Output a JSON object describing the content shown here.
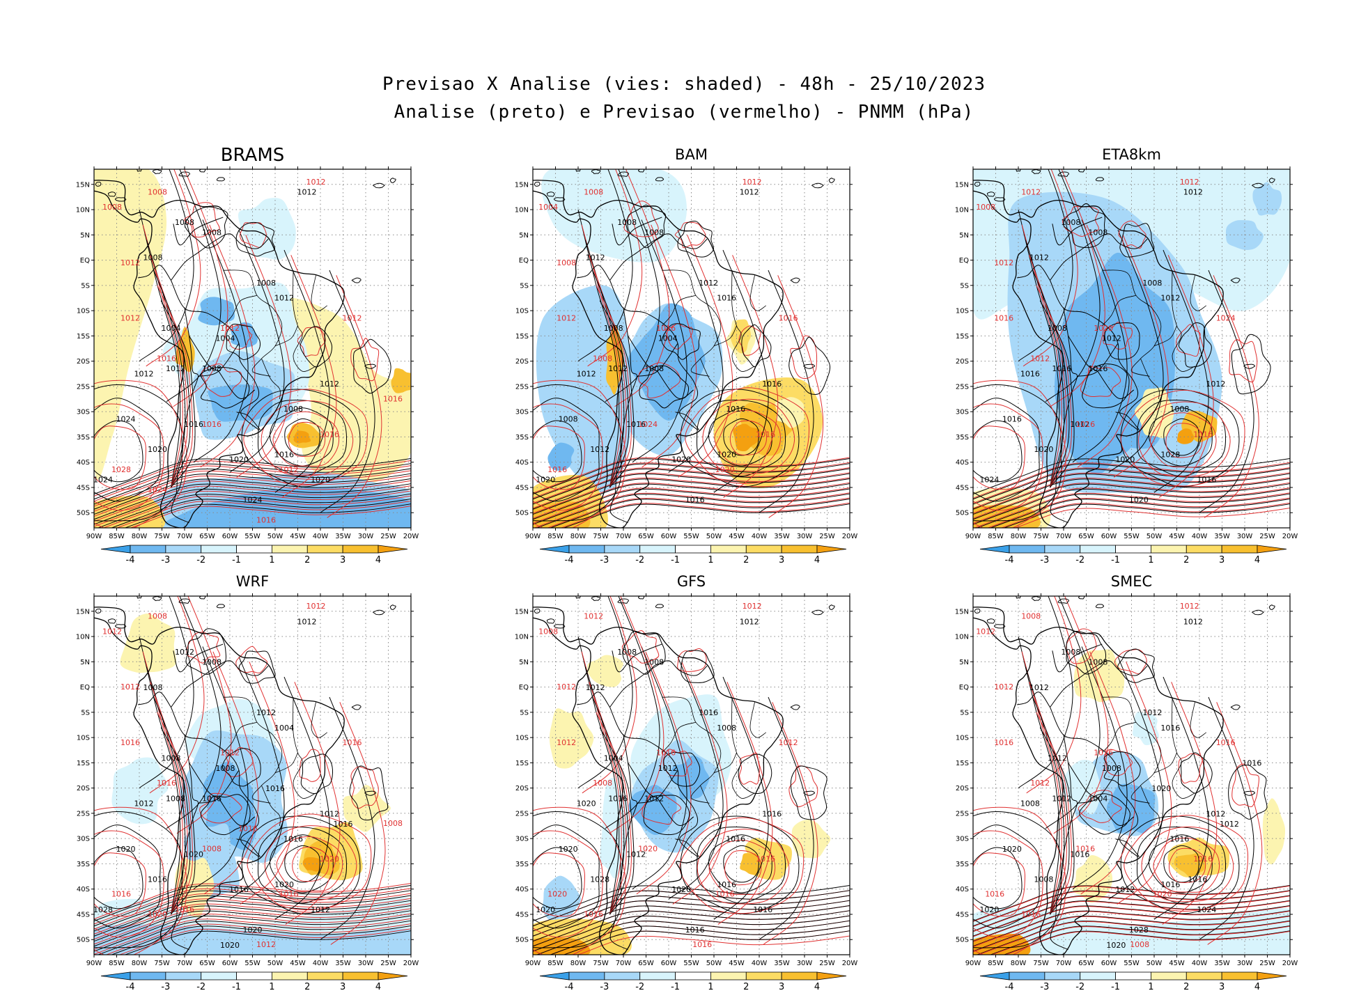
{
  "figure": {
    "title_line1": "Previsao X Analise (vies: shaded) - 48h - 25/10/2023",
    "title_line2": "Analise (preto) e Previsao (vermelho) - PNMM (hPa)"
  },
  "colors": {
    "analysis_contour": "#000000",
    "forecast_contour": "#e03030",
    "grid": "#8a8a8a",
    "coast": "#000000",
    "bias_scale": [
      "#3aa0e8",
      "#6fb8f0",
      "#a8d8f8",
      "#d8f4fc",
      "#ffffff",
      "#fcf4b0",
      "#fcdc64",
      "#f8c030",
      "#f4a010"
    ]
  },
  "axes": {
    "lon_labels": [
      "90W",
      "85W",
      "80W",
      "75W",
      "70W",
      "65W",
      "60W",
      "55W",
      "50W",
      "45W",
      "40W",
      "35W",
      "30W",
      "25W",
      "20W"
    ],
    "lat_labels": [
      "15N",
      "10N",
      "5N",
      "EQ",
      "5S",
      "10S",
      "15S",
      "20S",
      "25S",
      "30S",
      "35S",
      "40S",
      "45S",
      "50S"
    ]
  },
  "colorbar": {
    "labels": [
      "-4",
      "-3",
      "-2",
      "-1",
      "1",
      "2",
      "3",
      "4"
    ]
  },
  "panels": [
    {
      "title": "BRAMS",
      "black_labels": [
        "1012",
        "1008",
        "1008",
        "1008",
        "1008",
        "1012",
        "1004",
        "1004",
        "1008",
        "1012",
        "1012",
        "1012",
        "1008",
        "1016",
        "1024",
        "1020",
        "1020",
        "1016",
        "1024",
        "1024",
        "1020"
      ],
      "red_labels": [
        "1012",
        "1008",
        "1008",
        "1012",
        "1012",
        "1012",
        "1016",
        "1012",
        "1016",
        "1016",
        "1012",
        "1028",
        "1024",
        "1016",
        "1016"
      ]
    },
    {
      "title": "BAM",
      "black_labels": [
        "1012",
        "1008",
        "1008",
        "1012",
        "1012",
        "1016",
        "1008",
        "1004",
        "1008",
        "1012",
        "1012",
        "1016",
        "1016",
        "1016",
        "1008",
        "1012",
        "1020",
        "1020",
        "1020",
        "1016"
      ],
      "red_labels": [
        "1012",
        "1008",
        "1004",
        "1008",
        "1012",
        "1016",
        "1008",
        "1016",
        "1024",
        "1016",
        "1020",
        "1016"
      ]
    },
    {
      "title": "ETA8km",
      "black_labels": [
        "1012",
        "1008",
        "1008",
        "1012",
        "1008",
        "1012",
        "1008",
        "1012",
        "1016",
        "1016",
        "1016",
        "1012",
        "1008",
        "1012",
        "1016",
        "1020",
        "1020",
        "1028",
        "1024",
        "1020",
        "1016"
      ],
      "red_labels": [
        "1012",
        "1012",
        "1008",
        "1012",
        "1016",
        "1020",
        "1012",
        "1024",
        "1016",
        "1016"
      ]
    },
    {
      "title": "WRF",
      "black_labels": [
        "1012",
        "1012",
        "1008",
        "1008",
        "1012",
        "1004",
        "1008",
        "1008",
        "1016",
        "1008",
        "1012",
        "1012",
        "1016",
        "1020",
        "1020",
        "1016",
        "1016",
        "1020",
        "1028",
        "1020",
        "1012",
        "1020",
        "1016",
        "1016"
      ],
      "red_labels": [
        "1012",
        "1008",
        "1012",
        "1012",
        "1016",
        "1012",
        "1016",
        "1016",
        "1008",
        "1020",
        "1016",
        "1016",
        "1020",
        "1012",
        "1008",
        "1016",
        "1016"
      ]
    },
    {
      "title": "GFS",
      "black_labels": [
        "1012",
        "1008",
        "1008",
        "1012",
        "1016",
        "1008",
        "1004",
        "1012",
        "1012",
        "1016",
        "1020",
        "1016",
        "1016",
        "1012",
        "1020",
        "1028",
        "1020",
        "1016",
        "1020",
        "1016",
        "1016"
      ],
      "red_labels": [
        "1012",
        "1012",
        "1008",
        "1012",
        "1012",
        "1016",
        "1008",
        "1012",
        "1020",
        "1016",
        "1016",
        "1020",
        "1016",
        "1016"
      ]
    },
    {
      "title": "SMEC",
      "black_labels": [
        "1012",
        "1008",
        "1008",
        "1012",
        "1012",
        "1016",
        "1012",
        "1008",
        "1004",
        "1012",
        "1008",
        "1012",
        "1016",
        "1016",
        "1020",
        "1008",
        "1012",
        "1016",
        "1020",
        "1028",
        "1024",
        "1020",
        "1012",
        "1020",
        "1016",
        "1016"
      ],
      "red_labels": [
        "1012",
        "1008",
        "1012",
        "1012",
        "1016",
        "1016",
        "1012",
        "1016",
        "1016",
        "1016",
        "1020",
        "1016",
        "1016",
        "1008"
      ]
    }
  ]
}
